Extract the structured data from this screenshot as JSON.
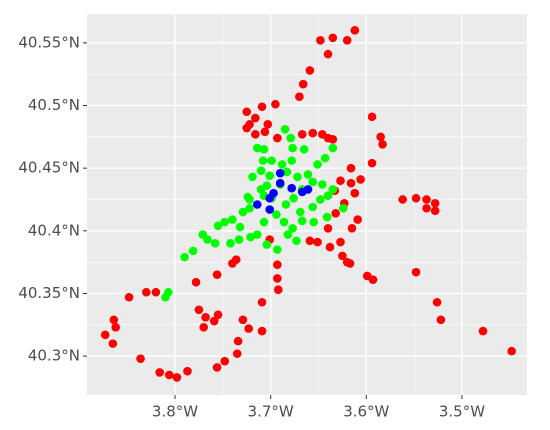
{
  "chart_data": {
    "type": "scatter",
    "xlim": [
      -3.892,
      -3.432
    ],
    "ylim": [
      40.269,
      40.573
    ],
    "xticks": [
      {
        "value": -3.8,
        "label": "3.8°W"
      },
      {
        "value": -3.7,
        "label": "3.7°W"
      },
      {
        "value": -3.6,
        "label": "3.6°W"
      },
      {
        "value": -3.5,
        "label": "3.5°W"
      }
    ],
    "yticks": [
      {
        "value": 40.3,
        "label": "40.3°N"
      },
      {
        "value": 40.35,
        "label": "40.35°N"
      },
      {
        "value": 40.4,
        "label": "40.4°N"
      },
      {
        "value": 40.45,
        "label": "40.45°N"
      },
      {
        "value": 40.5,
        "label": "40.5°N"
      },
      {
        "value": 40.55,
        "label": "40.55°N"
      }
    ],
    "grid": true,
    "series": [
      {
        "color": "#ff0000",
        "x": [
          -3.612,
          -3.62,
          -3.635,
          -3.648,
          -3.64,
          -3.659,
          -3.666,
          -3.67,
          -3.695,
          -3.709,
          -3.725,
          -3.716,
          -3.722,
          -3.703,
          -3.716,
          -3.706,
          -3.725,
          -3.693,
          -3.594,
          -3.585,
          -3.583,
          -3.594,
          -3.616,
          -3.606,
          -3.616,
          -3.627,
          -3.633,
          -3.612,
          -3.623,
          -3.632,
          -3.562,
          -3.548,
          -3.537,
          -3.528,
          -3.537,
          -3.528,
          -3.609,
          -3.64,
          -3.615,
          -3.627,
          -3.651,
          -3.659,
          -3.638,
          -3.625,
          -3.62,
          -3.599,
          -3.593,
          -3.617,
          -3.548,
          -3.526,
          -3.522,
          -3.478,
          -3.448,
          -3.736,
          -3.74,
          -3.756,
          -3.778,
          -3.693,
          -3.693,
          -3.692,
          -3.709,
          -3.775,
          -3.768,
          -3.77,
          -3.759,
          -3.755,
          -3.729,
          -3.723,
          -3.709,
          -3.734,
          -3.735,
          -3.748,
          -3.756,
          -3.787,
          -3.798,
          -3.806,
          -3.816,
          -3.836,
          -3.864,
          -3.862,
          -3.865,
          -3.873,
          -3.848,
          -3.83,
          -3.82,
          -3.667,
          -3.646,
          -3.64,
          -3.635,
          -3.656,
          -3.701
        ],
        "y": [
          40.56,
          40.552,
          40.554,
          40.552,
          40.541,
          40.528,
          40.517,
          40.507,
          40.501,
          40.499,
          40.495,
          40.49,
          40.485,
          40.485,
          40.477,
          40.479,
          40.482,
          40.474,
          40.491,
          40.475,
          40.469,
          40.454,
          40.45,
          40.441,
          40.438,
          40.44,
          40.432,
          40.43,
          40.422,
          40.414,
          40.425,
          40.426,
          40.425,
          40.422,
          40.418,
          40.416,
          40.409,
          40.402,
          40.402,
          40.391,
          40.391,
          40.392,
          40.387,
          40.38,
          40.375,
          40.364,
          40.361,
          40.374,
          40.367,
          40.343,
          40.329,
          40.32,
          40.304,
          40.377,
          40.374,
          40.365,
          40.359,
          40.373,
          40.362,
          40.353,
          40.343,
          40.337,
          40.331,
          40.323,
          40.328,
          40.333,
          40.329,
          40.322,
          40.32,
          40.312,
          40.302,
          40.296,
          40.291,
          40.288,
          40.283,
          40.285,
          40.287,
          40.298,
          40.329,
          40.323,
          40.31,
          40.317,
          40.347,
          40.351,
          40.351,
          40.477,
          40.477,
          40.474,
          40.473,
          40.478,
          40.393
        ]
      },
      {
        "color": "#00ff00",
        "x": [
          -3.807,
          -3.81,
          -3.79,
          -3.781,
          -3.771,
          -3.766,
          -3.758,
          -3.755,
          -3.748,
          -3.74,
          -3.742,
          -3.733,
          -3.729,
          -3.722,
          -3.724,
          -3.719,
          -3.71,
          -3.708,
          -3.714,
          -3.707,
          -3.685,
          -3.679,
          -3.677,
          -3.665,
          -3.678,
          -3.688,
          -3.699,
          -3.701,
          -3.71,
          -3.707,
          -3.701,
          -3.707,
          -3.714,
          -3.704,
          -3.693,
          -3.682,
          -3.677,
          -3.667,
          -3.669,
          -3.656,
          -3.648,
          -3.64,
          -3.635,
          -3.646,
          -3.656,
          -3.667,
          -3.661,
          -3.651,
          -3.643,
          -3.635,
          -3.624,
          -3.641,
          -3.655,
          -3.673,
          -3.686,
          -3.694,
          -3.684,
          -3.676,
          -3.721,
          -3.732,
          -3.69,
          -3.683,
          -3.672,
          -3.722,
          -3.699,
          -3.704
        ],
        "y": [
          40.351,
          40.347,
          40.379,
          40.384,
          40.397,
          40.393,
          40.39,
          40.404,
          40.407,
          40.409,
          40.39,
          40.393,
          40.415,
          40.418,
          40.427,
          40.443,
          40.448,
          40.456,
          40.466,
          40.465,
          40.481,
          40.474,
          40.466,
          40.465,
          40.456,
          40.453,
          40.456,
          40.444,
          40.433,
          40.428,
          40.417,
          40.407,
          40.397,
          40.389,
          40.385,
          40.397,
          40.402,
          40.408,
          40.415,
          40.419,
          40.425,
          40.428,
          40.433,
          40.437,
          40.439,
          40.433,
          40.445,
          40.453,
          40.458,
          40.466,
          40.418,
          40.411,
          40.407,
          40.392,
          40.407,
          40.413,
          40.421,
          40.426,
          40.395,
          40.403,
          40.437,
          40.447,
          40.443,
          40.425,
          40.426,
          40.436
        ]
      },
      {
        "color": "#0000ff",
        "x": [
          -3.701,
          -3.697,
          -3.714,
          -3.69,
          -3.678,
          -3.667,
          -3.661,
          -3.69,
          -3.701
        ],
        "y": [
          40.426,
          40.43,
          40.421,
          40.438,
          40.434,
          40.431,
          40.433,
          40.446,
          40.417
        ]
      }
    ]
  }
}
